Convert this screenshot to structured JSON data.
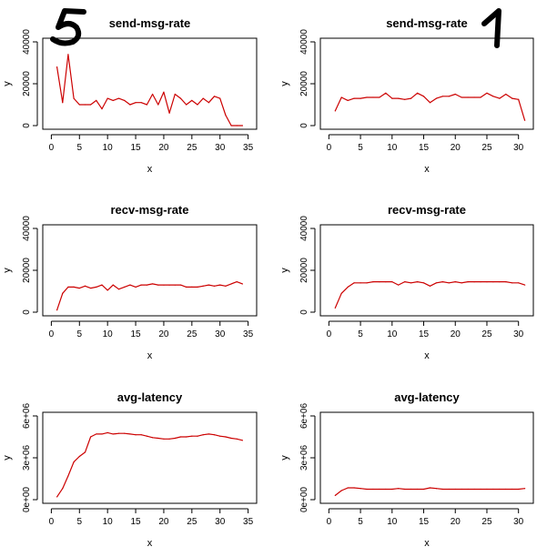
{
  "annotations": {
    "left_mark": "5",
    "right_mark": "1"
  },
  "colors": {
    "line": "#cc0000",
    "axis": "#000000"
  },
  "chart_data": [
    {
      "type": "line",
      "title": "send-msg-rate",
      "xlabel": "x",
      "ylabel": "y",
      "xlim": [
        0,
        35
      ],
      "ylim": [
        0,
        40000
      ],
      "xticks": [
        0,
        5,
        10,
        15,
        20,
        25,
        30,
        35
      ],
      "yticks": [
        0,
        20000,
        40000
      ],
      "ytick_labels": [
        "0",
        "20000",
        "40000"
      ],
      "x": [
        1,
        2,
        3,
        4,
        5,
        6,
        7,
        8,
        9,
        10,
        11,
        12,
        13,
        14,
        15,
        16,
        17,
        18,
        19,
        20,
        21,
        22,
        23,
        24,
        25,
        26,
        27,
        28,
        29,
        30,
        31,
        32,
        33,
        34
      ],
      "values": [
        28000,
        11000,
        34000,
        13000,
        10000,
        10000,
        10000,
        12000,
        8000,
        13000,
        12000,
        13000,
        12000,
        10000,
        11000,
        11000,
        10000,
        15000,
        10000,
        16000,
        6000,
        15000,
        13000,
        10000,
        12000,
        10000,
        13000,
        11000,
        14000,
        13000,
        5000,
        0,
        0,
        0
      ]
    },
    {
      "type": "line",
      "title": "send-msg-rate",
      "xlabel": "x",
      "ylabel": "y",
      "xlim": [
        0,
        31
      ],
      "ylim": [
        0,
        40000
      ],
      "xticks": [
        0,
        5,
        10,
        15,
        20,
        25,
        30
      ],
      "yticks": [
        0,
        20000,
        40000
      ],
      "ytick_labels": [
        "0",
        "20000",
        "40000"
      ],
      "x": [
        1,
        2,
        3,
        4,
        5,
        6,
        7,
        8,
        9,
        10,
        11,
        12,
        13,
        14,
        15,
        16,
        17,
        18,
        19,
        20,
        21,
        22,
        23,
        24,
        25,
        26,
        27,
        28,
        29,
        30,
        31
      ],
      "values": [
        7000,
        13500,
        12000,
        13000,
        13000,
        13500,
        13500,
        13500,
        15500,
        13000,
        13000,
        12500,
        13000,
        15500,
        14000,
        11000,
        13000,
        14000,
        14000,
        15000,
        13500,
        13500,
        13500,
        13500,
        15500,
        14000,
        13000,
        15000,
        13000,
        12500,
        2500
      ]
    },
    {
      "type": "line",
      "title": "recv-msg-rate",
      "xlabel": "x",
      "ylabel": "y",
      "xlim": [
        0,
        35
      ],
      "ylim": [
        0,
        40000
      ],
      "xticks": [
        0,
        5,
        10,
        15,
        20,
        25,
        30,
        35
      ],
      "yticks": [
        0,
        20000,
        40000
      ],
      "ytick_labels": [
        "0",
        "20000",
        "40000"
      ],
      "x": [
        1,
        2,
        3,
        4,
        5,
        6,
        7,
        8,
        9,
        10,
        11,
        12,
        13,
        14,
        15,
        16,
        17,
        18,
        19,
        20,
        21,
        22,
        23,
        24,
        25,
        26,
        27,
        28,
        29,
        30,
        31,
        32,
        33,
        34
      ],
      "values": [
        1000,
        9000,
        12000,
        12000,
        11500,
        12500,
        11500,
        12000,
        13000,
        10500,
        13000,
        11000,
        12000,
        13000,
        12000,
        13000,
        13000,
        13500,
        13000,
        13000,
        13000,
        13000,
        13000,
        12000,
        12000,
        12000,
        12500,
        13000,
        12500,
        13000,
        12500,
        13500,
        14500,
        13500
      ]
    },
    {
      "type": "line",
      "title": "recv-msg-rate",
      "xlabel": "x",
      "ylabel": "y",
      "xlim": [
        0,
        31
      ],
      "ylim": [
        0,
        40000
      ],
      "xticks": [
        0,
        5,
        10,
        15,
        20,
        25,
        30
      ],
      "yticks": [
        0,
        20000,
        40000
      ],
      "ytick_labels": [
        "0",
        "20000",
        "40000"
      ],
      "x": [
        1,
        2,
        3,
        4,
        5,
        6,
        7,
        8,
        9,
        10,
        11,
        12,
        13,
        14,
        15,
        16,
        17,
        18,
        19,
        20,
        21,
        22,
        23,
        24,
        25,
        26,
        27,
        28,
        29,
        30,
        31
      ],
      "values": [
        2000,
        9000,
        12000,
        14000,
        14000,
        14000,
        14500,
        14500,
        14500,
        14500,
        13000,
        14500,
        14000,
        14500,
        14000,
        12500,
        14000,
        14500,
        14000,
        14500,
        14000,
        14500,
        14500,
        14500,
        14500,
        14500,
        14500,
        14500,
        14000,
        14000,
        13000
      ]
    },
    {
      "type": "line",
      "title": "avg-latency",
      "xlabel": "x",
      "ylabel": "y",
      "xlim": [
        0,
        35
      ],
      "ylim": [
        0,
        6000000
      ],
      "xticks": [
        0,
        5,
        10,
        15,
        20,
        25,
        30,
        35
      ],
      "yticks": [
        0,
        3000000,
        6000000
      ],
      "ytick_labels": [
        "0e+00",
        "3e+06",
        "6e+06"
      ],
      "x": [
        1,
        2,
        3,
        4,
        5,
        6,
        7,
        8,
        9,
        10,
        11,
        12,
        13,
        14,
        15,
        16,
        17,
        18,
        19,
        20,
        21,
        22,
        23,
        24,
        25,
        26,
        27,
        28,
        29,
        30,
        31,
        32,
        33,
        34
      ],
      "values": [
        200000,
        800000,
        1700000,
        2700000,
        3100000,
        3400000,
        4500000,
        4700000,
        4700000,
        4800000,
        4700000,
        4750000,
        4750000,
        4700000,
        4650000,
        4650000,
        4550000,
        4450000,
        4400000,
        4350000,
        4350000,
        4400000,
        4500000,
        4500000,
        4550000,
        4550000,
        4650000,
        4700000,
        4650000,
        4550000,
        4500000,
        4400000,
        4350000,
        4250000
      ]
    },
    {
      "type": "line",
      "title": "avg-latency",
      "xlabel": "x",
      "ylabel": "y",
      "xlim": [
        0,
        31
      ],
      "ylim": [
        0,
        6000000
      ],
      "xticks": [
        0,
        5,
        10,
        15,
        20,
        25,
        30
      ],
      "yticks": [
        0,
        3000000,
        6000000
      ],
      "ytick_labels": [
        "0e+00",
        "3e+06",
        "6e+06"
      ],
      "x": [
        1,
        2,
        3,
        4,
        5,
        6,
        7,
        8,
        9,
        10,
        11,
        12,
        13,
        14,
        15,
        16,
        17,
        18,
        19,
        20,
        21,
        22,
        23,
        24,
        25,
        26,
        27,
        28,
        29,
        30,
        31
      ],
      "values": [
        300000,
        650000,
        850000,
        850000,
        800000,
        750000,
        750000,
        750000,
        750000,
        750000,
        800000,
        750000,
        750000,
        750000,
        750000,
        850000,
        800000,
        750000,
        750000,
        750000,
        750000,
        750000,
        750000,
        750000,
        750000,
        750000,
        750000,
        750000,
        750000,
        750000,
        800000
      ]
    }
  ]
}
